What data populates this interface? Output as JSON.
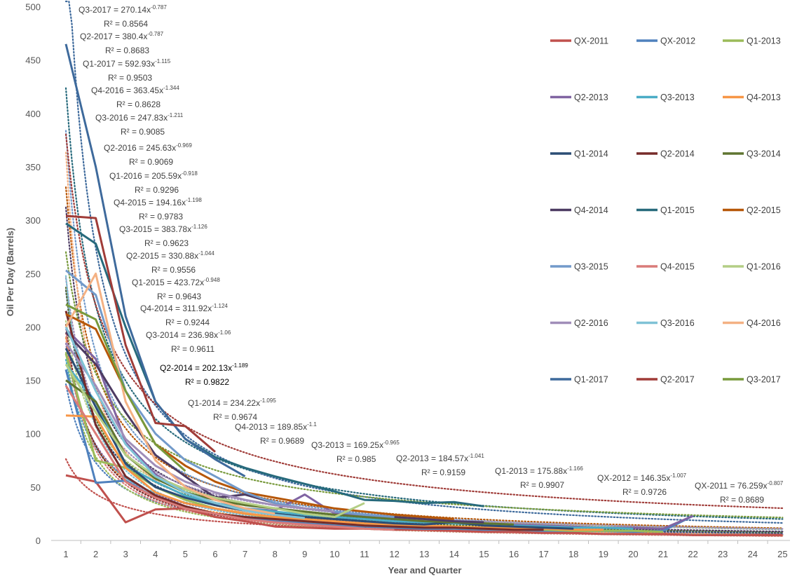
{
  "chart_data": {
    "type": "line",
    "title": "",
    "xlabel": "Year and Quarter",
    "ylabel": "Oil Per Day (Barrels)",
    "xlim": [
      1,
      25
    ],
    "ylim": [
      0,
      500
    ],
    "x_ticks": [
      "1",
      "2",
      "3",
      "4",
      "5",
      "6",
      "7",
      "8",
      "9",
      "10",
      "11",
      "12",
      "13",
      "14",
      "15",
      "16",
      "17",
      "18",
      "19",
      "20",
      "21",
      "22",
      "23",
      "24",
      "25"
    ],
    "y_ticks": [
      "0",
      "50",
      "100",
      "150",
      "200",
      "250",
      "300",
      "350",
      "400",
      "450",
      "500"
    ],
    "grid": false,
    "legend_position": "right",
    "series": [
      {
        "name": "QX-2011",
        "color": "#C0504D",
        "trend": {
          "a": 76.259,
          "b": -0.807
        },
        "x_start": 1,
        "values": [
          61,
          55,
          17,
          29,
          30,
          22,
          18,
          13,
          12,
          11,
          11,
          10,
          10,
          9,
          8,
          8,
          7,
          7,
          6,
          6,
          6,
          5,
          5,
          5,
          5
        ]
      },
      {
        "name": "QX-2012",
        "color": "#4F81BD",
        "trend": {
          "a": 146.35,
          "b": -1.007
        },
        "x_start": 1,
        "values": [
          160,
          54,
          56,
          40,
          32,
          25,
          21,
          18,
          16,
          14,
          13,
          12,
          11,
          11,
          10,
          10,
          9,
          9,
          9,
          8,
          9,
          23
        ]
      },
      {
        "name": "Q1-2013",
        "color": "#9BBB59",
        "trend": {
          "a": 175.88,
          "b": -1.166
        },
        "x_start": 1,
        "values": [
          175,
          75,
          68,
          50,
          38,
          30,
          25,
          21,
          18,
          16,
          15,
          14,
          13,
          12,
          11,
          10,
          10,
          9,
          9,
          9,
          8
        ]
      },
      {
        "name": "Q2-2013",
        "color": "#8064A2",
        "trend": {
          "a": 184.57,
          "b": -1.041
        },
        "x_start": 1,
        "values": [
          198,
          170,
          92,
          62,
          45,
          35,
          30,
          28,
          43,
          25,
          22,
          20,
          18,
          17,
          16,
          15,
          14,
          13,
          12,
          12,
          11,
          23
        ]
      },
      {
        "name": "Q3-2013",
        "color": "#4BACC6",
        "trend": {
          "a": 169.25,
          "b": -0.965
        },
        "x_start": 1,
        "values": [
          165,
          130,
          70,
          55,
          42,
          35,
          30,
          27,
          24,
          22,
          20,
          18,
          17,
          16,
          15,
          14,
          13,
          12,
          12,
          11
        ]
      },
      {
        "name": "Q4-2013",
        "color": "#F79646",
        "trend": {
          "a": 189.85,
          "b": -1.1
        },
        "x_start": 1,
        "values": [
          117,
          116,
          68,
          45,
          35,
          30,
          25,
          22,
          20,
          18,
          16,
          15,
          14,
          13,
          12,
          12,
          11,
          10,
          10
        ]
      },
      {
        "name": "Q1-2014",
        "color": "#2C4D75",
        "trend": {
          "a": 234.22,
          "b": -1.095
        },
        "x_start": 1,
        "values": [
          180,
          125,
          72,
          50,
          40,
          33,
          28,
          25,
          22,
          20,
          18,
          16,
          15,
          17,
          14,
          13,
          12,
          11
        ]
      },
      {
        "name": "Q2-2014",
        "color": "#772C2A",
        "trend": {
          "a": 202.13,
          "b": -1.189
        },
        "x_start": 1,
        "values": [
          215,
          108,
          60,
          42,
          32,
          25,
          22,
          20,
          18,
          16,
          14,
          13,
          12,
          12,
          11,
          10,
          10
        ]
      },
      {
        "name": "Q3-2014",
        "color": "#5F7530",
        "trend": {
          "a": 236.98,
          "b": -1.06
        },
        "x_start": 1,
        "values": [
          150,
          130,
          80,
          58,
          45,
          38,
          33,
          30,
          27,
          24,
          22,
          20,
          18,
          17,
          16,
          15
        ]
      },
      {
        "name": "Q4-2014",
        "color": "#4D3B62",
        "trend": {
          "a": 311.92,
          "b": -1.124
        },
        "x_start": 1,
        "values": [
          195,
          165,
          120,
          80,
          60,
          40,
          43,
          35,
          30,
          27,
          24,
          22,
          20,
          18,
          17
        ]
      },
      {
        "name": "Q1-2015",
        "color": "#276A7C",
        "trend": {
          "a": 423.72,
          "b": -0.948
        },
        "x_start": 1,
        "values": [
          297,
          278,
          200,
          130,
          95,
          78,
          68,
          60,
          53,
          46,
          38,
          37,
          35,
          36,
          32
        ]
      },
      {
        "name": "Q2-2015",
        "color": "#B65708",
        "trend": {
          "a": 330.88,
          "b": -1.044
        },
        "x_start": 1,
        "values": [
          212,
          198,
          140,
          90,
          70,
          55,
          45,
          40,
          35,
          30,
          27,
          24,
          22,
          20
        ]
      },
      {
        "name": "Q3-2015",
        "color": "#729ACA",
        "trend": {
          "a": 383.78,
          "b": -1.126
        },
        "x_start": 1,
        "values": [
          253,
          230,
          140,
          100,
          75,
          60,
          45,
          35,
          30,
          27,
          24,
          22
        ]
      },
      {
        "name": "Q4-2015",
        "color": "#D97B79",
        "trend": {
          "a": 194.16,
          "b": -1.198
        },
        "x_start": 1,
        "values": [
          145,
          100,
          55,
          40,
          30,
          25,
          20,
          17,
          15,
          13,
          11,
          10
        ]
      },
      {
        "name": "Q1-2016",
        "color": "#B4CE85",
        "trend": {
          "a": 205.59,
          "b": -0.918
        },
        "x_start": 1,
        "values": [
          165,
          120,
          80,
          60,
          48,
          40,
          35,
          30,
          25,
          22,
          35
        ]
      },
      {
        "name": "Q2-2016",
        "color": "#A08EB9",
        "trend": {
          "a": 245.63,
          "b": -0.969
        },
        "x_start": 1,
        "values": [
          185,
          145,
          95,
          70,
          55,
          45,
          38,
          33,
          30,
          27
        ]
      },
      {
        "name": "Q3-2016",
        "color": "#7FC2D6",
        "trend": {
          "a": 247.83,
          "b": -1.211
        },
        "x_start": 1,
        "values": [
          200,
          140,
          90,
          60,
          45,
          35,
          28,
          24,
          21
        ]
      },
      {
        "name": "Q4-2016",
        "color": "#F4B183",
        "trend": {
          "a": 363.45,
          "b": -1.344
        },
        "x_start": 1,
        "values": [
          200,
          250,
          130,
          75,
          50,
          38,
          30,
          25
        ]
      },
      {
        "name": "Q1-2017",
        "color": "#3E6A9C",
        "trend": {
          "a": 592.93,
          "b": -1.115
        },
        "x_start": 1,
        "values": [
          465,
          350,
          210,
          130,
          95,
          76,
          60
        ]
      },
      {
        "name": "Q2-2017",
        "color": "#A03C38",
        "trend": {
          "a": 380.4,
          "b": -0.787
        },
        "x_start": 1,
        "values": [
          304,
          302,
          183,
          110,
          107,
          83
        ]
      },
      {
        "name": "Q3-2017",
        "color": "#789A3C",
        "trend": {
          "a": 270.14,
          "b": -0.787
        },
        "x_start": 1,
        "values": [
          221,
          207,
          140,
          90,
          65
        ]
      }
    ],
    "annotations": [
      {
        "label": "Q3-2017",
        "coef": "270.14x",
        "exp": "-0.787",
        "r2": "0.8564"
      },
      {
        "label": "Q2-2017",
        "coef": "380.4x",
        "exp": "-0.787",
        "r2": "0.8683"
      },
      {
        "label": "Q1-2017",
        "coef": "592.93x",
        "exp": "-1.115",
        "r2": "0.9503"
      },
      {
        "label": "Q4-2016",
        "coef": "363.45x",
        "exp": "-1.344",
        "r2": "0.8628"
      },
      {
        "label": "Q3-2016",
        "coef": "247.83x",
        "exp": "-1.211",
        "r2": "0.9085"
      },
      {
        "label": "Q2-2016",
        "coef": "245.63x",
        "exp": "-0.969",
        "r2": "0.9069"
      },
      {
        "label": "Q1-2016",
        "coef": "205.59x",
        "exp": "-0.918",
        "r2": "0.9296"
      },
      {
        "label": "Q4-2015",
        "coef": "194.16x",
        "exp": "-1.198",
        "r2": "0.9783"
      },
      {
        "label": "Q3-2015",
        "coef": "383.78x",
        "exp": "-1.126",
        "r2": "0.9623"
      },
      {
        "label": "Q2-2015",
        "coef": "330.88x",
        "exp": "-1.044",
        "r2": "0.9556"
      },
      {
        "label": "Q1-2015",
        "coef": "423.72x",
        "exp": "-0.948",
        "r2": "0.9643"
      },
      {
        "label": "Q4-2014",
        "coef": "311.92x",
        "exp": "-1.124",
        "r2": "0.9244"
      },
      {
        "label": "Q3-2014",
        "coef": "236.98x",
        "exp": "-1.06",
        "r2": "0.9611"
      },
      {
        "label": "Q2-2014",
        "coef": "202.13x",
        "exp": "-1.189",
        "r2": "0.9822",
        "dark": true
      },
      {
        "label": "Q1-2014",
        "coef": "234.22x",
        "exp": "-1.095",
        "r2": "0.9674"
      },
      {
        "label": "Q4-2013",
        "coef": "189.85x",
        "exp": "-1.1",
        "r2": "0.9689"
      },
      {
        "label": "Q3-2013",
        "coef": "169.25x",
        "exp": "-0.965",
        "r2": "0.985"
      },
      {
        "label": "Q2-2013",
        "coef": "184.57x",
        "exp": "-1.041",
        "r2": "0.9159"
      },
      {
        "label": "Q1-2013",
        "coef": "175.88x",
        "exp": "-1.166",
        "r2": "0.9907"
      },
      {
        "label": "QX-2012",
        "coef": "146.35x",
        "exp": "-1.007",
        "r2": "0.9726"
      },
      {
        "label": "QX-2011",
        "coef": "76.259x",
        "exp": "-0.807",
        "r2": "0.8689"
      }
    ],
    "r2_prefix": "R² = "
  }
}
